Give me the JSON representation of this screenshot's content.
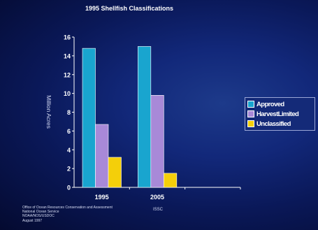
{
  "chart_data": {
    "type": "bar",
    "title": "1995 Shellfish Classifications",
    "ylabel": "Million Acres",
    "ylim": [
      0,
      16
    ],
    "yticks": [
      0,
      2,
      4,
      6,
      8,
      10,
      12,
      14,
      16
    ],
    "categories": [
      "1995",
      "2005",
      ""
    ],
    "series": [
      {
        "name": "Approved",
        "color": "#19a5cf",
        "values": [
          14.8,
          15.0,
          null
        ]
      },
      {
        "name": "HarvestLimited",
        "color": "#a889d8",
        "values": [
          6.7,
          9.8,
          null
        ]
      },
      {
        "name": "Unclassified",
        "color": "#f4cf0a",
        "values": [
          3.2,
          1.5,
          null
        ]
      }
    ],
    "legend_position": "right",
    "grid": false
  },
  "footer": {
    "credit_lines": [
      "Office of Ocean Resources Conservation and Assessment",
      "National Ocean Service",
      "NOAA/NOS/USDOC",
      "August 1997"
    ],
    "issc": "ISSC"
  }
}
